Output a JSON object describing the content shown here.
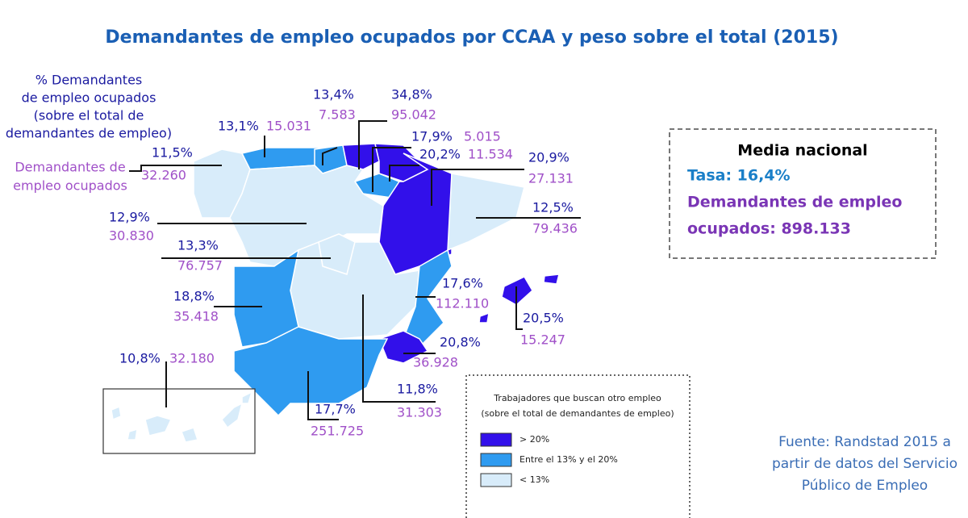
{
  "title": "Demandantes de empleo ocupados por CCAA y peso sobre el total (2015)",
  "key": {
    "rate_lines": [
      "% Demandantes",
      "de empleo ocupados",
      "(sobre el total de",
      "demandantes de empleo)"
    ],
    "count_lines": [
      "Demandantes de",
      "empleo ocupados"
    ]
  },
  "regions": [
    {
      "rate": "11,5%",
      "count": "32.260"
    },
    {
      "rate": "13,1%",
      "count": "15.031"
    },
    {
      "rate": "13,4%",
      "count": "7.583"
    },
    {
      "rate": "34,8%",
      "count": "95.042"
    },
    {
      "rate": "17,9%",
      "count": "5.015"
    },
    {
      "rate": "20,2%",
      "count": "11.534"
    },
    {
      "rate": "20,9%",
      "count": "27.131"
    },
    {
      "rate": "12,9%",
      "count": "30.830"
    },
    {
      "rate": "12,5%",
      "count": "79.436"
    },
    {
      "rate": "13,3%",
      "count": "76.757"
    },
    {
      "rate": "18,8%",
      "count": "35.418"
    },
    {
      "rate": "17,6%",
      "count": "112.110"
    },
    {
      "rate": "20,5%",
      "count": "15.247"
    },
    {
      "rate": "20,8%",
      "count": "36.928"
    },
    {
      "rate": "10,8%",
      "count": "32.180"
    },
    {
      "rate": "17,7%",
      "count": "251.725"
    },
    {
      "rate": "11,8%",
      "count": "31.303"
    }
  ],
  "summary": {
    "title": "Media nacional",
    "rate": "Tasa: 16,4%",
    "count_lines": [
      "Demandantes de empleo",
      "ocupados: 898.133"
    ]
  },
  "legend": {
    "title_lines": [
      "Trabajadores que buscan otro empleo",
      "(sobre el total de demandantes de empleo)"
    ],
    "items": [
      {
        "label": "> 20%",
        "color": "#3210ea"
      },
      {
        "label": "Entre el 13% y el 20%",
        "color": "#2f9bf0"
      },
      {
        "label": "< 13%",
        "color": "#d8ecfa"
      }
    ]
  },
  "source_lines": [
    "Fuente: Randstad 2015 a",
    "partir de datos del Servicio",
    "Público de Empleo"
  ]
}
